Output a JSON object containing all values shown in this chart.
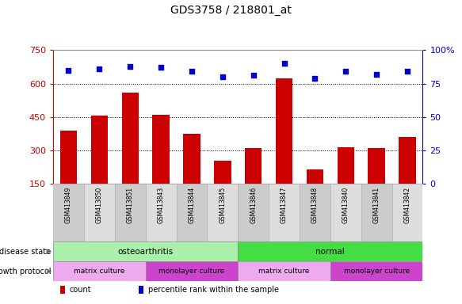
{
  "title": "GDS3758 / 218801_at",
  "samples": [
    "GSM413849",
    "GSM413850",
    "GSM413851",
    "GSM413843",
    "GSM413844",
    "GSM413845",
    "GSM413846",
    "GSM413847",
    "GSM413848",
    "GSM413840",
    "GSM413841",
    "GSM413842"
  ],
  "counts": [
    390,
    455,
    560,
    460,
    375,
    255,
    310,
    625,
    215,
    315,
    310,
    360
  ],
  "percentile_ranks": [
    85,
    86,
    88,
    87,
    84,
    80,
    81,
    90,
    79,
    84,
    82,
    84
  ],
  "ylim_left": [
    150,
    750
  ],
  "ylim_right": [
    0,
    100
  ],
  "yticks_left": [
    150,
    300,
    450,
    600,
    750
  ],
  "yticks_right": [
    0,
    25,
    50,
    75,
    100
  ],
  "bar_color": "#cc0000",
  "dot_color": "#0000cc",
  "disease_state_groups": [
    {
      "label": "osteoarthritis",
      "start": 0,
      "end": 6,
      "color": "#aaf0aa"
    },
    {
      "label": "normal",
      "start": 6,
      "end": 12,
      "color": "#44dd44"
    }
  ],
  "growth_protocol_groups": [
    {
      "label": "matrix culture",
      "start": 0,
      "end": 3,
      "color": "#eeaaee"
    },
    {
      "label": "monolayer culture",
      "start": 3,
      "end": 6,
      "color": "#cc44cc"
    },
    {
      "label": "matrix culture",
      "start": 6,
      "end": 9,
      "color": "#eeaaee"
    },
    {
      "label": "monolayer culture",
      "start": 9,
      "end": 12,
      "color": "#cc44cc"
    }
  ],
  "tick_label_color_left": "#cc0000",
  "tick_label_color_right": "#0000cc",
  "grid_yticks": [
    300,
    450,
    600
  ],
  "label_row_colors": [
    "#cccccc",
    "#dddddd"
  ]
}
